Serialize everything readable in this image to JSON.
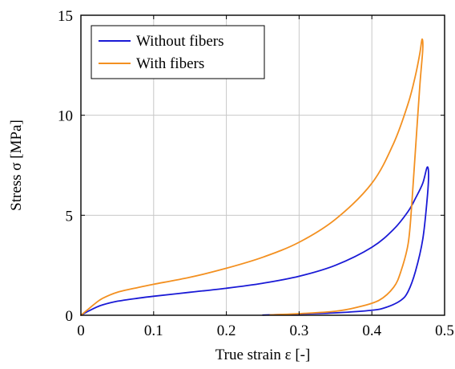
{
  "chart_data": {
    "type": "line",
    "xlabel": "True strain ε [-]",
    "ylabel": "Stress σ [MPa]",
    "xlim": [
      0,
      0.5
    ],
    "ylim": [
      0,
      15
    ],
    "xticks": [
      "0",
      "0.1",
      "0.2",
      "0.3",
      "0.4",
      "0.5"
    ],
    "yticks": [
      "0",
      "5",
      "10",
      "15"
    ],
    "grid": true,
    "legend": {
      "position": "top-left"
    },
    "series": [
      {
        "name": "Without fibers",
        "color": "#1a1ad6",
        "points": [
          [
            0,
            0
          ],
          [
            0.01,
            0.2
          ],
          [
            0.02,
            0.38
          ],
          [
            0.03,
            0.52
          ],
          [
            0.05,
            0.7
          ],
          [
            0.08,
            0.86
          ],
          [
            0.1,
            0.95
          ],
          [
            0.15,
            1.15
          ],
          [
            0.2,
            1.35
          ],
          [
            0.25,
            1.6
          ],
          [
            0.3,
            1.95
          ],
          [
            0.35,
            2.5
          ],
          [
            0.4,
            3.4
          ],
          [
            0.43,
            4.3
          ],
          [
            0.45,
            5.2
          ],
          [
            0.46,
            5.85
          ],
          [
            0.47,
            6.6
          ],
          [
            0.476,
            7.4
          ],
          [
            0.478,
            7.0
          ],
          [
            0.476,
            5.8
          ],
          [
            0.47,
            3.8
          ],
          [
            0.46,
            2.2
          ],
          [
            0.45,
            1.2
          ],
          [
            0.44,
            0.75
          ],
          [
            0.42,
            0.4
          ],
          [
            0.4,
            0.25
          ],
          [
            0.35,
            0.12
          ],
          [
            0.3,
            0.06
          ],
          [
            0.28,
            0.04
          ],
          [
            0.25,
            0.01
          ]
        ]
      },
      {
        "name": "With fibers",
        "color": "#f39020",
        "points": [
          [
            0,
            0
          ],
          [
            0.01,
            0.3
          ],
          [
            0.02,
            0.6
          ],
          [
            0.03,
            0.85
          ],
          [
            0.05,
            1.15
          ],
          [
            0.08,
            1.4
          ],
          [
            0.1,
            1.55
          ],
          [
            0.15,
            1.9
          ],
          [
            0.2,
            2.35
          ],
          [
            0.25,
            2.9
          ],
          [
            0.3,
            3.65
          ],
          [
            0.35,
            4.8
          ],
          [
            0.4,
            6.6
          ],
          [
            0.43,
            8.6
          ],
          [
            0.45,
            10.6
          ],
          [
            0.46,
            12.0
          ],
          [
            0.466,
            13.1
          ],
          [
            0.469,
            13.8
          ],
          [
            0.47,
            13.3
          ],
          [
            0.466,
            11.5
          ],
          [
            0.46,
            8.3
          ],
          [
            0.455,
            5.6
          ],
          [
            0.45,
            3.6
          ],
          [
            0.44,
            2.2
          ],
          [
            0.43,
            1.4
          ],
          [
            0.41,
            0.75
          ],
          [
            0.38,
            0.4
          ],
          [
            0.35,
            0.2
          ],
          [
            0.3,
            0.08
          ],
          [
            0.26,
            0.02
          ]
        ]
      }
    ]
  }
}
